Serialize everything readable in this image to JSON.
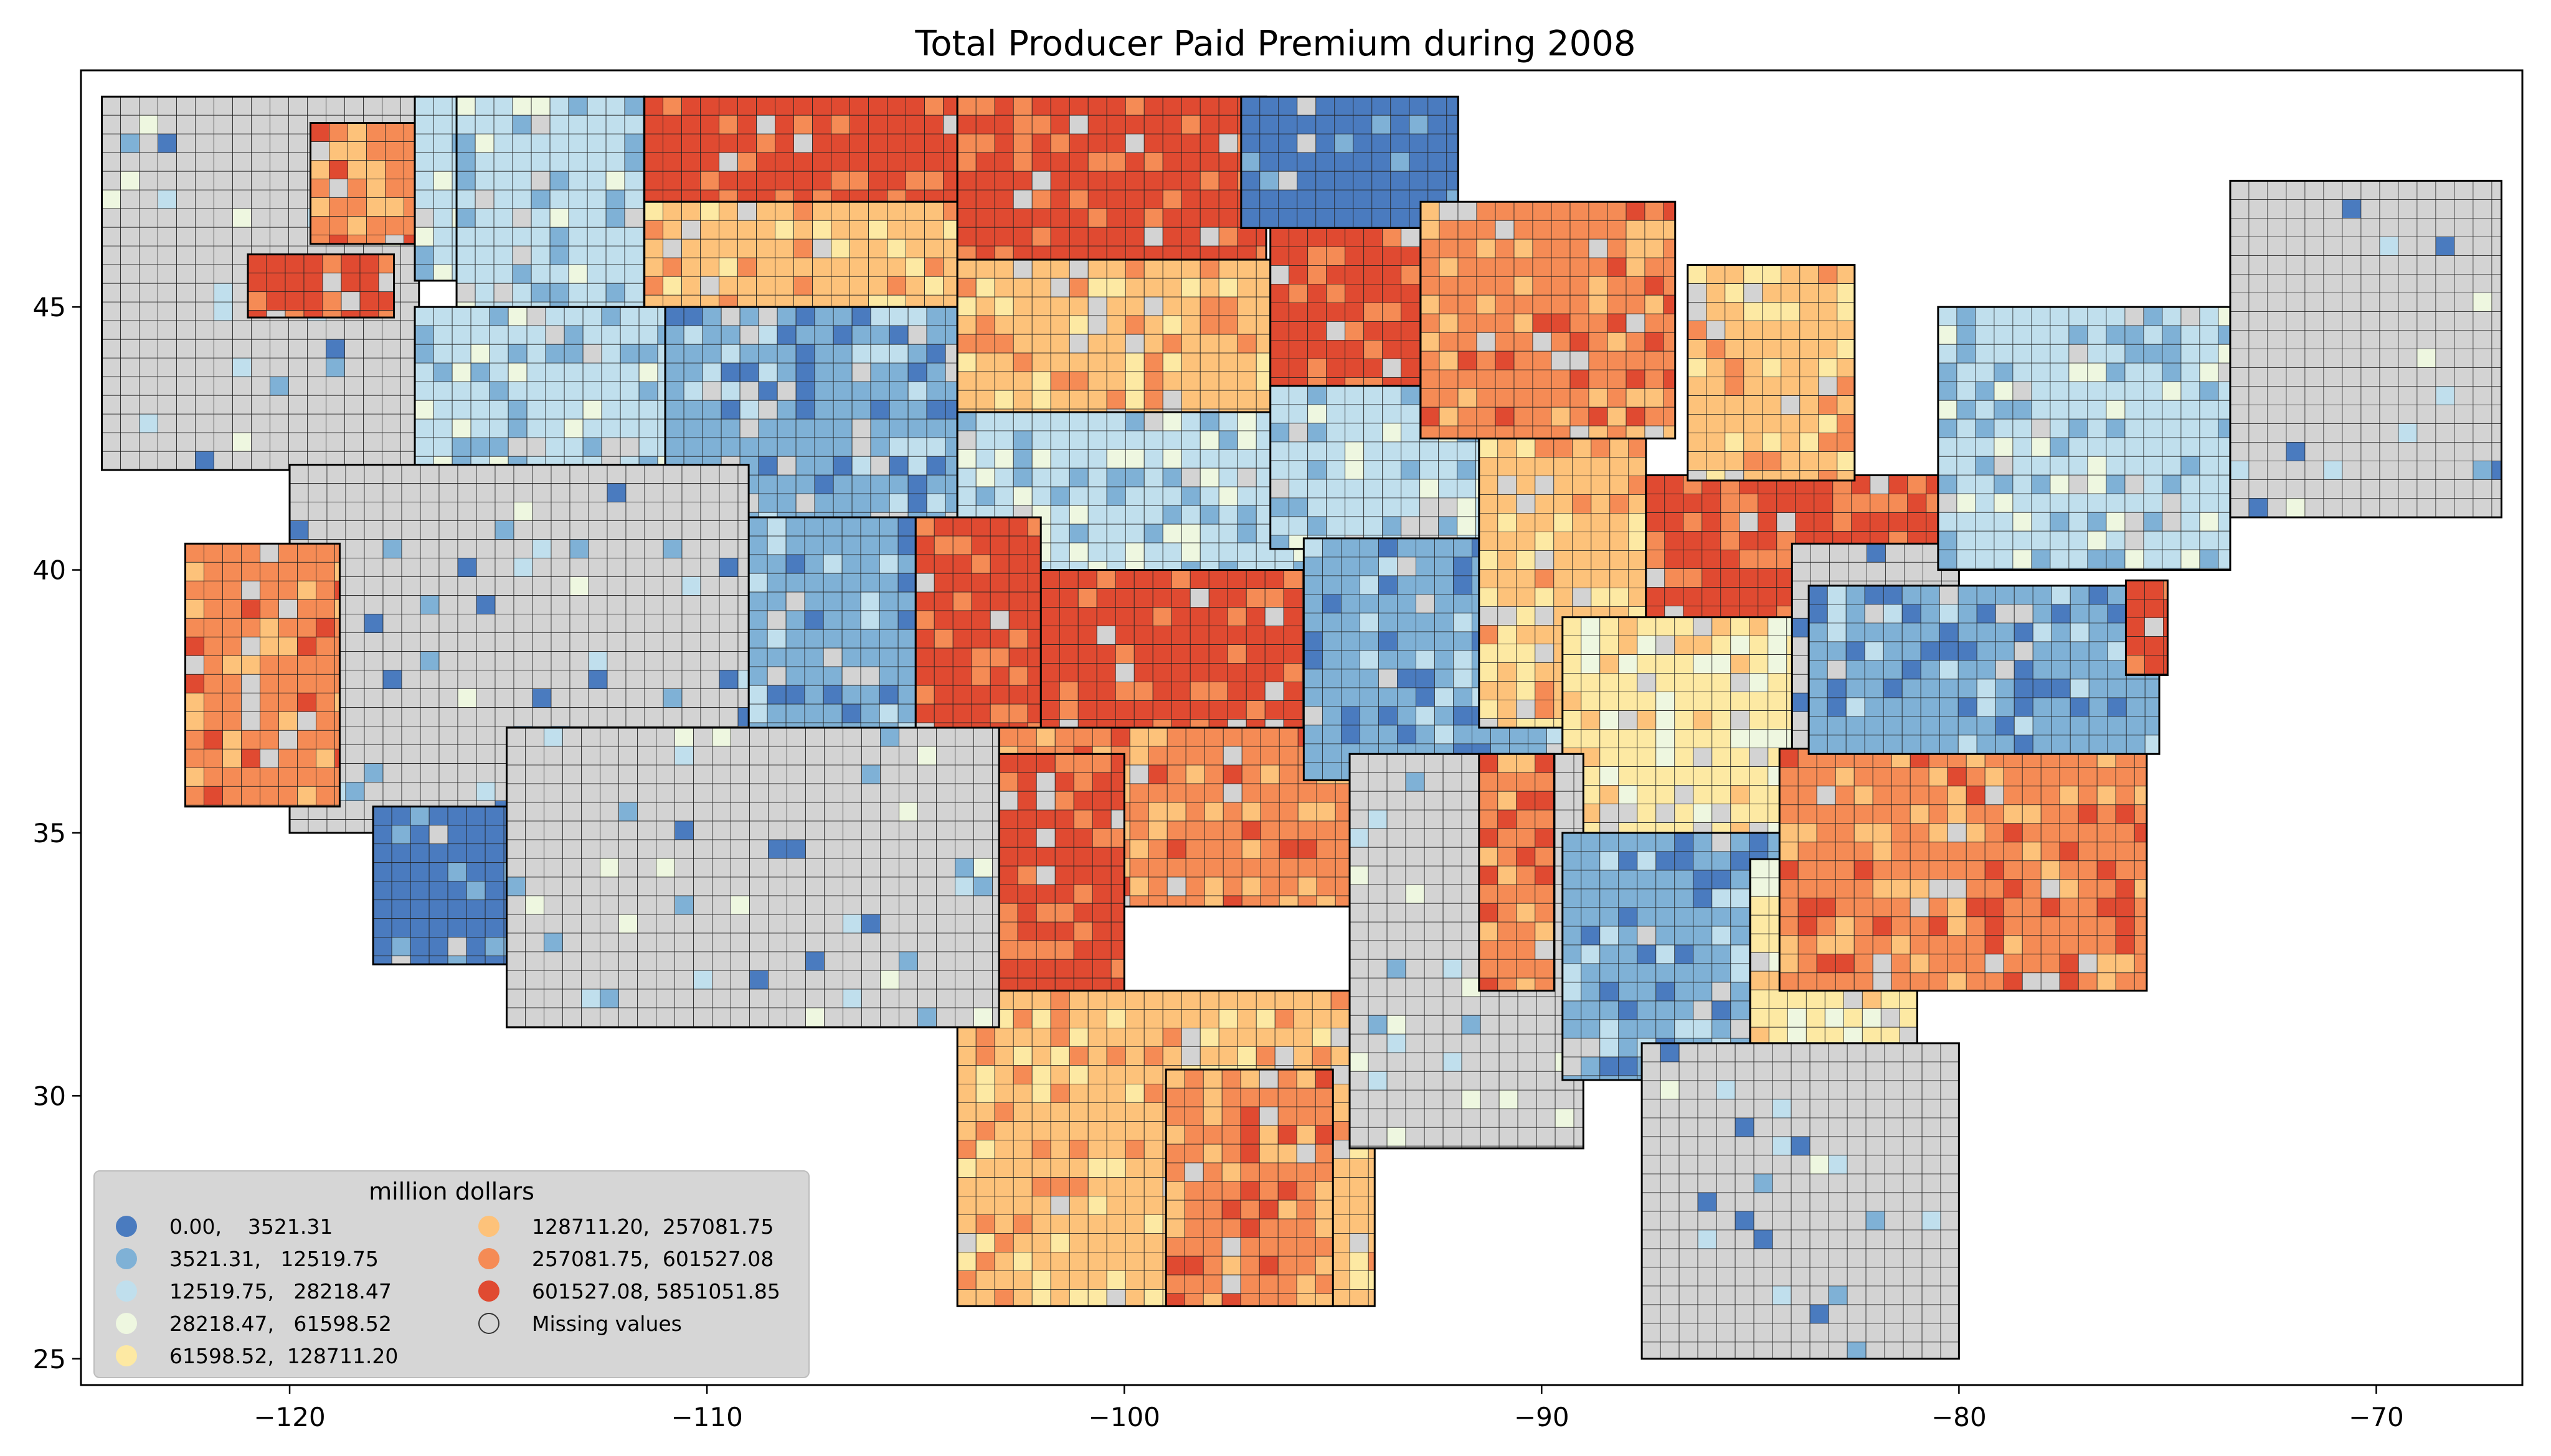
{
  "title": "Total Producer Paid Premium during 2008",
  "colors": {
    "class0": "#4a7bbf",
    "class1": "#7fb1d6",
    "class2": "#c0dfed",
    "class3": "#eef7e0",
    "class4": "#fde9a3",
    "class5": "#fdc27a",
    "class6": "#f58b55",
    "class7": "#e04a31",
    "missing": "#d3d3d3",
    "state_border": "#000000",
    "county_border": "#222222"
  },
  "map": {
    "x_range": [
      -125,
      -66.5
    ],
    "y_range": [
      24.5,
      49.5
    ],
    "x_ticks": [
      -120,
      -110,
      -100,
      -90,
      -80,
      -70
    ],
    "x_tick_labels": [
      "−120",
      "−110",
      "−100",
      "−90",
      "−80",
      "−70"
    ],
    "y_ticks": [
      25,
      30,
      35,
      40,
      45
    ],
    "y_tick_labels": [
      "25",
      "30",
      "35",
      "40",
      "45"
    ]
  },
  "legend": {
    "title": "million dollars",
    "items": [
      {
        "label": "0.00,    3521.31",
        "color_key": "class0"
      },
      {
        "label": "3521.31,   12519.75",
        "color_key": "class1"
      },
      {
        "label": "12519.75,   28218.47",
        "color_key": "class2"
      },
      {
        "label": "28218.47,   61598.52",
        "color_key": "class3"
      },
      {
        "label": "61598.52,  128711.20",
        "color_key": "class4"
      },
      {
        "label": "128711.20,  257081.75",
        "color_key": "class5"
      },
      {
        "label": "257081.75,  601527.08",
        "color_key": "class6"
      },
      {
        "label": "601527.08, 5851051.85",
        "color_key": "class7"
      },
      {
        "label": "Missing values",
        "color_key": "missing"
      }
    ]
  },
  "regions": [
    {
      "name": "pacific-northwest",
      "lon": [
        -124.5,
        -116.9
      ],
      "lat": [
        41.9,
        49.0
      ],
      "class": "missing"
    },
    {
      "name": "ne-oregon-wheat",
      "lon": [
        -121.0,
        -117.5
      ],
      "lat": [
        44.8,
        46.0
      ],
      "class": 7
    },
    {
      "name": "east-washington",
      "lon": [
        -119.5,
        -117.0
      ],
      "lat": [
        46.2,
        48.5
      ],
      "class": 6
    },
    {
      "name": "north-idaho",
      "lon": [
        -117.0,
        -114.5
      ],
      "lat": [
        45.5,
        49.0
      ],
      "class": 2
    },
    {
      "name": "south-idaho",
      "lon": [
        -117.0,
        -111.0
      ],
      "lat": [
        42.0,
        45.0
      ],
      "class": 2
    },
    {
      "name": "montana-north",
      "lon": [
        -111.5,
        -104.0
      ],
      "lat": [
        47.0,
        49.0
      ],
      "class": 7
    },
    {
      "name": "montana-central",
      "lon": [
        -111.5,
        -104.0
      ],
      "lat": [
        45.0,
        47.0
      ],
      "class": 5
    },
    {
      "name": "montana-west",
      "lon": [
        -116.0,
        -111.5
      ],
      "lat": [
        45.0,
        49.0
      ],
      "class": 2
    },
    {
      "name": "wyoming",
      "lon": [
        -111.0,
        -104.0
      ],
      "lat": [
        41.0,
        45.0
      ],
      "class": 1
    },
    {
      "name": "north-dakota",
      "lon": [
        -104.0,
        -96.6
      ],
      "lat": [
        45.9,
        49.0
      ],
      "class": 7
    },
    {
      "name": "south-dakota",
      "lon": [
        -104.0,
        -96.5
      ],
      "lat": [
        42.5,
        45.9
      ],
      "class": 5
    },
    {
      "name": "nebraska",
      "lon": [
        -104.0,
        -95.3
      ],
      "lat": [
        40.0,
        43.0
      ],
      "class": 2
    },
    {
      "name": "kansas",
      "lon": [
        -102.0,
        -94.6
      ],
      "lat": [
        37.0,
        40.0
      ],
      "class": 7
    },
    {
      "name": "colorado-east",
      "lon": [
        -105.0,
        -102.0
      ],
      "lat": [
        37.0,
        41.0
      ],
      "class": 7
    },
    {
      "name": "colorado-west",
      "lon": [
        -109.0,
        -105.0
      ],
      "lat": [
        37.0,
        41.0
      ],
      "class": 1
    },
    {
      "name": "oklahoma",
      "lon": [
        -103.0,
        -94.5
      ],
      "lat": [
        33.6,
        37.0
      ],
      "class": 6
    },
    {
      "name": "texas-panhandle",
      "lon": [
        -103.0,
        -100.0
      ],
      "lat": [
        32.0,
        36.5
      ],
      "class": 7
    },
    {
      "name": "texas-central",
      "lon": [
        -104.0,
        -94.0
      ],
      "lat": [
        26.0,
        32.0
      ],
      "class": 5
    },
    {
      "name": "texas-coast",
      "lon": [
        -99.0,
        -95.0
      ],
      "lat": [
        26.0,
        30.5
      ],
      "class": 6
    },
    {
      "name": "minnesota-north",
      "lon": [
        -97.2,
        -92.0
      ],
      "lat": [
        46.5,
        49.0
      ],
      "class": 0
    },
    {
      "name": "minnesota-south",
      "lon": [
        -96.5,
        -91.5
      ],
      "lat": [
        43.5,
        46.5
      ],
      "class": 7
    },
    {
      "name": "iowa",
      "lon": [
        -96.5,
        -90.2
      ],
      "lat": [
        40.4,
        43.5
      ],
      "class": 2
    },
    {
      "name": "missouri",
      "lon": [
        -95.7,
        -89.5
      ],
      "lat": [
        36.0,
        40.6
      ],
      "class": 1
    },
    {
      "name": "illinois",
      "lon": [
        -91.5,
        -87.5
      ],
      "lat": [
        37.0,
        42.5
      ],
      "class": 5
    },
    {
      "name": "indiana-ohio",
      "lon": [
        -87.5,
        -80.5
      ],
      "lat": [
        38.5,
        41.8
      ],
      "class": 7
    },
    {
      "name": "wisconsin",
      "lon": [
        -92.9,
        -86.8
      ],
      "lat": [
        42.5,
        47.0
      ],
      "class": 6
    },
    {
      "name": "michigan-lower",
      "lon": [
        -86.5,
        -82.5
      ],
      "lat": [
        41.7,
        45.8
      ],
      "class": 5
    },
    {
      "name": "kentucky-tennessee",
      "lon": [
        -89.5,
        -81.7
      ],
      "lat": [
        35.0,
        39.1
      ],
      "class": 4
    },
    {
      "name": "appalachia",
      "lon": [
        -84.0,
        -80.0
      ],
      "lat": [
        36.5,
        40.5
      ],
      "class": "missing"
    },
    {
      "name": "arkansas-louisiana",
      "lon": [
        -94.6,
        -89.0
      ],
      "lat": [
        29.0,
        36.5
      ],
      "class": "missing"
    },
    {
      "name": "mississippi-delta",
      "lon": [
        -91.5,
        -89.7
      ],
      "lat": [
        32.0,
        36.5
      ],
      "class": 6
    },
    {
      "name": "deep-south",
      "lon": [
        -89.5,
        -81.0
      ],
      "lat": [
        30.3,
        35.0
      ],
      "class": 1
    },
    {
      "name": "georgia-central",
      "lon": [
        -85.0,
        -81.0
      ],
      "lat": [
        31.0,
        34.5
      ],
      "class": 4
    },
    {
      "name": "carolinas",
      "lon": [
        -84.3,
        -75.5
      ],
      "lat": [
        32.0,
        36.6
      ],
      "class": 6
    },
    {
      "name": "virginia-maryland",
      "lon": [
        -83.6,
        -75.2
      ],
      "lat": [
        36.5,
        39.7
      ],
      "class": 1
    },
    {
      "name": "delmarva",
      "lon": [
        -76.0,
        -75.0
      ],
      "lat": [
        38.0,
        39.8
      ],
      "class": 7
    },
    {
      "name": "pennsylvania-newyork",
      "lon": [
        -80.5,
        -73.5
      ],
      "lat": [
        40.0,
        45.0
      ],
      "class": 2
    },
    {
      "name": "new-england",
      "lon": [
        -73.5,
        -67.0
      ],
      "lat": [
        41.0,
        47.4
      ],
      "class": "missing"
    },
    {
      "name": "florida",
      "lon": [
        -87.6,
        -80.0
      ],
      "lat": [
        25.0,
        31.0
      ],
      "class": "missing"
    },
    {
      "name": "nevada-utah",
      "lon": [
        -120.0,
        -109.0
      ],
      "lat": [
        35.0,
        42.0
      ],
      "class": "missing"
    },
    {
      "name": "california-central-valley",
      "lon": [
        -122.5,
        -118.8
      ],
      "lat": [
        35.5,
        40.5
      ],
      "class": 6
    },
    {
      "name": "california-south",
      "lon": [
        -118.0,
        -114.5
      ],
      "lat": [
        32.5,
        35.5
      ],
      "class": 0
    },
    {
      "name": "arizona-new-mexico",
      "lon": [
        -114.8,
        -103.0
      ],
      "lat": [
        31.3,
        37.0
      ],
      "class": "missing"
    }
  ]
}
